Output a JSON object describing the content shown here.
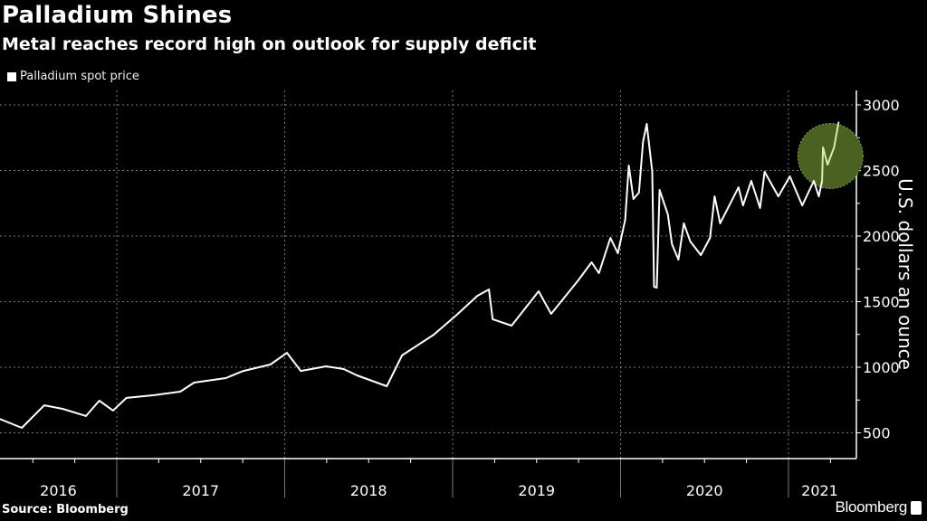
{
  "header": {
    "title": "Palladium Shines",
    "subtitle": "Metal reaches record high on outlook for supply deficit"
  },
  "footer": {
    "source": "Source: Bloomberg",
    "logo": "Bloomberg"
  },
  "chart_data": {
    "type": "line",
    "title": "Palladium Shines",
    "subtitle": "Metal reaches record high on outlook for supply deficit",
    "ylabel": "U.S. dollars an ounce",
    "xlabel": "",
    "ylim": [
      300,
      3100
    ],
    "yticks": [
      500,
      1000,
      1500,
      2000,
      2500,
      3000
    ],
    "xticks": [
      "2016",
      "2017",
      "2018",
      "2019",
      "2020",
      "2021"
    ],
    "grid": true,
    "y_axis_side": "right",
    "legend_position": "top-left",
    "colors": {
      "line": "#ffffff",
      "highlight_line": "#d4f0a8",
      "highlight_fill": "#4b6122",
      "background": "#000000"
    },
    "highlight": {
      "from": "2021-03-15",
      "note": "record high"
    },
    "series": [
      {
        "name": "Palladium spot price",
        "points": [
          [
            "2016-04-20",
            607
          ],
          [
            "2016-06-08",
            538
          ],
          [
            "2016-07-27",
            710
          ],
          [
            "2016-09-05",
            683
          ],
          [
            "2016-10-26",
            628
          ],
          [
            "2016-11-24",
            745
          ],
          [
            "2016-12-24",
            670
          ],
          [
            "2017-01-22",
            766
          ],
          [
            "2017-03-21",
            786
          ],
          [
            "2017-05-19",
            814
          ],
          [
            "2017-06-18",
            883
          ],
          [
            "2017-08-26",
            917
          ],
          [
            "2017-10-03",
            972
          ],
          [
            "2017-12-01",
            1021
          ],
          [
            "2018-01-06",
            1110
          ],
          [
            "2018-02-05",
            972
          ],
          [
            "2018-04-01",
            1007
          ],
          [
            "2018-05-09",
            986
          ],
          [
            "2018-06-07",
            938
          ],
          [
            "2018-08-11",
            855
          ],
          [
            "2018-09-13",
            1090
          ],
          [
            "2018-11-21",
            1248
          ],
          [
            "2019-01-10",
            1400
          ],
          [
            "2019-02-24",
            1545
          ],
          [
            "2019-03-21",
            1593
          ],
          [
            "2019-03-29",
            1366
          ],
          [
            "2019-05-09",
            1317
          ],
          [
            "2019-07-07",
            1579
          ],
          [
            "2019-08-03",
            1407
          ],
          [
            "2019-10-01",
            1662
          ],
          [
            "2019-10-30",
            1800
          ],
          [
            "2019-11-15",
            1717
          ],
          [
            "2019-12-10",
            1986
          ],
          [
            "2019-12-26",
            1869
          ],
          [
            "2020-01-11",
            2124
          ],
          [
            "2020-01-19",
            2538
          ],
          [
            "2020-01-29",
            2283
          ],
          [
            "2020-02-10",
            2331
          ],
          [
            "2020-02-19",
            2717
          ],
          [
            "2020-02-27",
            2855
          ],
          [
            "2020-03-10",
            2490
          ],
          [
            "2020-03-14",
            1614
          ],
          [
            "2020-03-20",
            1607
          ],
          [
            "2020-03-26",
            2352
          ],
          [
            "2020-04-13",
            2166
          ],
          [
            "2020-04-22",
            1938
          ],
          [
            "2020-05-06",
            1821
          ],
          [
            "2020-05-18",
            2097
          ],
          [
            "2020-06-01",
            1959
          ],
          [
            "2020-06-24",
            1855
          ],
          [
            "2020-07-14",
            1986
          ],
          [
            "2020-07-24",
            2303
          ],
          [
            "2020-08-05",
            2097
          ],
          [
            "2020-09-14",
            2372
          ],
          [
            "2020-09-24",
            2234
          ],
          [
            "2020-10-12",
            2421
          ],
          [
            "2020-10-31",
            2214
          ],
          [
            "2020-11-10",
            2490
          ],
          [
            "2020-12-10",
            2303
          ],
          [
            "2021-01-04",
            2455
          ],
          [
            "2021-01-31",
            2234
          ],
          [
            "2021-02-25",
            2421
          ],
          [
            "2021-03-08",
            2303
          ],
          [
            "2021-03-15",
            2421
          ],
          [
            "2021-03-17",
            2676
          ],
          [
            "2021-03-27",
            2545
          ],
          [
            "2021-04-10",
            2676
          ],
          [
            "2021-04-20",
            2869
          ]
        ]
      }
    ]
  }
}
